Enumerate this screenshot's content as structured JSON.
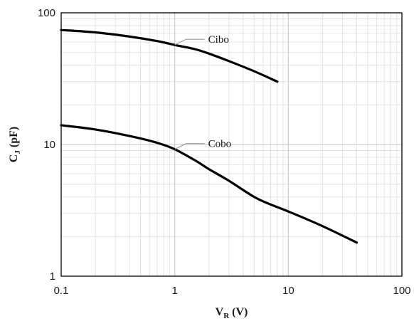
{
  "chart_data": {
    "type": "line",
    "xscale": "log",
    "yscale": "log",
    "xlim": [
      0.1,
      100
    ],
    "ylim": [
      1,
      100
    ],
    "x_ticks": [
      "0.1",
      "1",
      "10",
      "100"
    ],
    "y_ticks": [
      "1",
      "10",
      "100"
    ],
    "xlabel": {
      "main": "V",
      "sub": "R",
      "rest": " (V)"
    },
    "ylabel": {
      "main": "C",
      "sub": "J",
      "rest": " (pF)"
    },
    "grid": true,
    "series": [
      {
        "name": "Cibo",
        "color": "#000000",
        "points": [
          [
            0.1,
            74
          ],
          [
            0.2,
            71
          ],
          [
            0.4,
            66
          ],
          [
            0.7,
            61
          ],
          [
            1,
            57
          ],
          [
            1.5,
            53
          ],
          [
            2,
            49
          ],
          [
            3,
            43
          ],
          [
            5,
            36
          ],
          [
            8,
            30
          ]
        ],
        "label_anchor": [
          1,
          57
        ]
      },
      {
        "name": "Cobo",
        "color": "#000000",
        "points": [
          [
            0.1,
            14
          ],
          [
            0.2,
            13
          ],
          [
            0.4,
            11.6
          ],
          [
            0.7,
            10.3
          ],
          [
            1,
            9.2
          ],
          [
            1.5,
            7.6
          ],
          [
            2,
            6.5
          ],
          [
            3,
            5.3
          ],
          [
            5,
            4.0
          ],
          [
            7,
            3.5
          ],
          [
            10,
            3.1
          ],
          [
            20,
            2.4
          ],
          [
            40,
            1.8
          ]
        ],
        "label_anchor": [
          1,
          9.2
        ]
      }
    ]
  }
}
